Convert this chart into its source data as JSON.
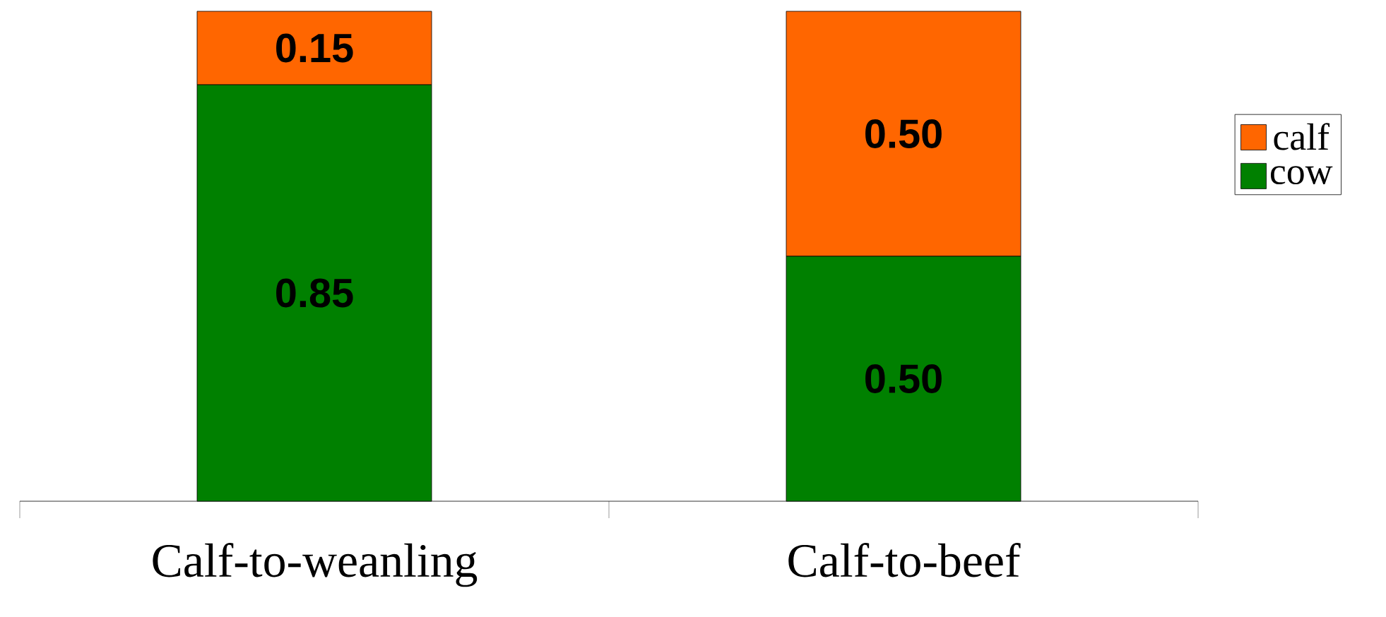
{
  "chart_data": {
    "type": "bar",
    "stacked": true,
    "categories": [
      "Calf-to-weanling",
      "Calf-to-beef"
    ],
    "series": [
      {
        "name": "cow",
        "color": "#008000",
        "values": [
          0.85,
          0.5
        ],
        "value_labels": [
          "0.85",
          "0.50"
        ]
      },
      {
        "name": "calf",
        "color": "#ff6600",
        "values": [
          0.15,
          0.5
        ],
        "value_labels": [
          "0.15",
          "0.50"
        ]
      }
    ],
    "legend": "right"
  }
}
